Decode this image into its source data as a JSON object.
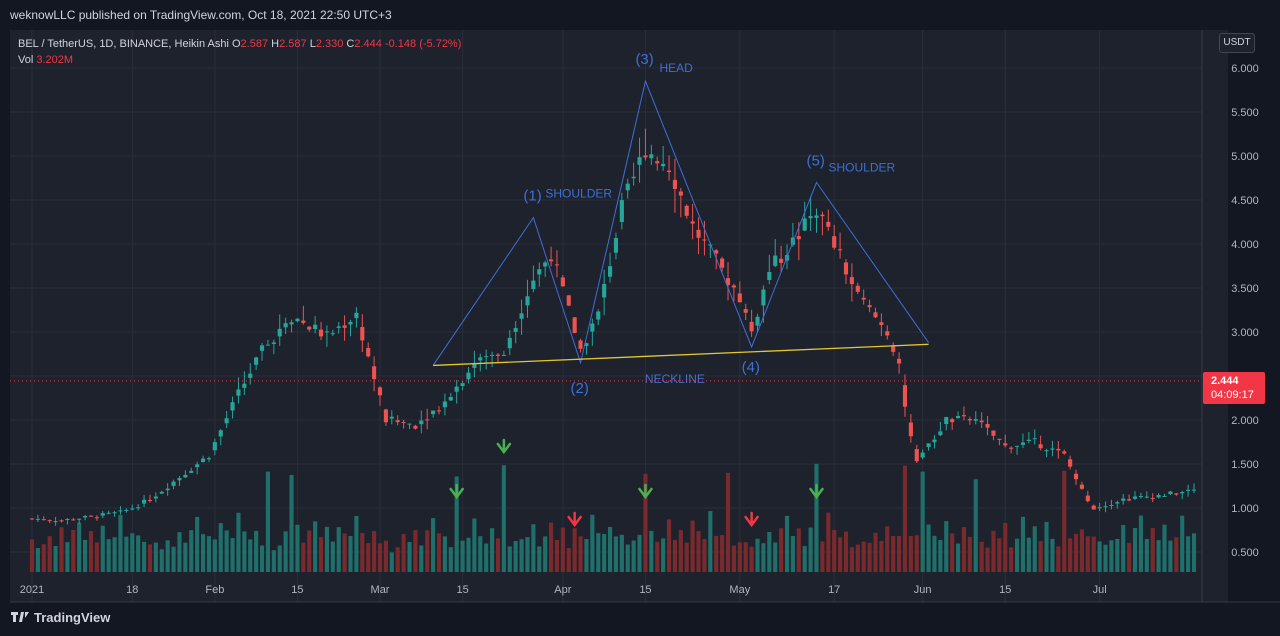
{
  "header": {
    "publisher_text": "weknowLLC published on TradingView.com, Oct 18, 2021 22:50 UTC+3"
  },
  "legend": {
    "symbol": "BEL / TetherUS, 1D, BINANCE, Heikin Ashi",
    "open_label": "O",
    "open": "2.587",
    "high_label": "H",
    "high": "2.587",
    "low_label": "L",
    "low": "2.330",
    "close_label": "C",
    "close": "2.444",
    "change": "-0.148 (-5.72%)",
    "vol_label": "Vol",
    "vol": "3.202M"
  },
  "currency_button": "USDT",
  "last_price": {
    "price": "2.444",
    "countdown": "04:09:17"
  },
  "footer": {
    "brand": "TradingView"
  },
  "colors": {
    "up": "#26a69a",
    "down": "#ef5350",
    "vol_up": "#1f6f6b",
    "vol_down": "#7a2a2c",
    "pattern_line": "#3d6fd6",
    "neckline": "#e2c532",
    "label_blue": "#3d6fd6"
  },
  "chart_data": {
    "type": "candlestick",
    "title": "BEL / TetherUS, 1D, BINANCE, Heikin Ashi",
    "ylim": [
      0.3,
      6.3
    ],
    "y_ticks": [
      "6.000",
      "5.500",
      "5.000",
      "4.500",
      "4.000",
      "3.500",
      "3.000",
      "2.500",
      "2.000",
      "1.500",
      "1.000",
      "0.500"
    ],
    "y_tick_values": [
      6.0,
      5.5,
      5.0,
      4.5,
      4.0,
      3.5,
      3.0,
      2.5,
      2.0,
      1.5,
      1.0,
      0.5
    ],
    "x_ticks": [
      "2021",
      "18",
      "Feb",
      "15",
      "Mar",
      "15",
      "Apr",
      "15",
      "May",
      "17",
      "Jun",
      "15",
      "Jul"
    ],
    "x_tick_days": [
      0,
      17,
      31,
      45,
      59,
      73,
      90,
      104,
      120,
      136,
      151,
      165,
      181
    ],
    "pattern_points": [
      {
        "label": "(1)",
        "day": 85,
        "price": 4.3
      },
      {
        "label": "(2)",
        "day": 93,
        "price": 2.65
      },
      {
        "label": "(3)",
        "day": 104,
        "price": 5.85
      },
      {
        "label": "(4)",
        "day": 122,
        "price": 2.83
      },
      {
        "label": "(5)",
        "day": 133,
        "price": 4.7
      }
    ],
    "annotations": {
      "p1_label": "(1)",
      "p1_text": "SHOULDER",
      "p2_label": "(2)",
      "p3_label": "(3)",
      "p3_text": "HEAD",
      "p4_label": "(4)",
      "p5_label": "(5)",
      "p5_text": "SHOULDER",
      "neckline_text": "NECKLINE"
    },
    "neckline": {
      "start_day": 68,
      "start_price": 2.62,
      "end_day": 152,
      "end_price": 2.86
    },
    "arrows": [
      {
        "day": 72,
        "dir": "down",
        "color": "green"
      },
      {
        "day": 80,
        "dir": "down",
        "color": "green"
      },
      {
        "day": 92,
        "dir": "down",
        "color": "red"
      },
      {
        "day": 104,
        "dir": "down",
        "color": "green"
      },
      {
        "day": 122,
        "dir": "down",
        "color": "red"
      },
      {
        "day": 133,
        "dir": "down",
        "color": "green"
      }
    ],
    "last_price": 2.444,
    "anchors_days": [
      0,
      5,
      10,
      15,
      17,
      20,
      25,
      30,
      35,
      40,
      45,
      50,
      55,
      60,
      65,
      70,
      75,
      80,
      85,
      88,
      93,
      96,
      100,
      104,
      108,
      112,
      116,
      120,
      122,
      125,
      130,
      133,
      136,
      140,
      145,
      147,
      148,
      150,
      155,
      160,
      165,
      170,
      175,
      178,
      180,
      185,
      192,
      197
    ],
    "anchors_price": [
      0.88,
      0.86,
      0.9,
      0.95,
      1.0,
      1.1,
      1.35,
      1.6,
      2.3,
      2.9,
      3.15,
      2.95,
      3.2,
      2.0,
      1.95,
      2.2,
      2.65,
      2.8,
      3.6,
      3.9,
      2.8,
      3.2,
      4.4,
      5.1,
      4.9,
      4.2,
      3.8,
      3.4,
      3.0,
      3.7,
      4.1,
      4.4,
      4.0,
      3.4,
      3.0,
      2.65,
      2.1,
      1.5,
      2.0,
      2.0,
      1.7,
      1.75,
      1.6,
      1.2,
      1.0,
      1.1,
      1.15,
      1.2
    ],
    "volume_pattern": [
      0.35,
      0.2,
      0.25,
      0.4,
      0.3,
      0.55,
      0.3,
      0.45,
      0.7,
      0.35,
      0.5,
      0.25,
      0.6,
      0.4,
      0.3,
      0.75,
      0.45,
      0.35,
      0.5,
      0.3
    ],
    "volume_spikes_days": [
      40,
      44,
      72,
      80,
      104,
      118,
      133,
      148,
      151,
      160,
      175
    ],
    "volume_ticks": [
      "1.000",
      "0.500"
    ]
  }
}
